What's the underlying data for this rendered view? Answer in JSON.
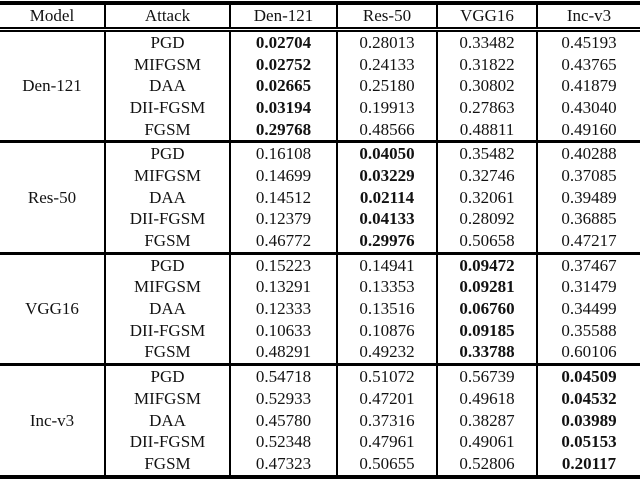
{
  "table": {
    "headers": [
      "Model",
      "Attack",
      "Den-121",
      "Res-50",
      "VGG16",
      "Inc-v3"
    ],
    "groups": [
      {
        "model": "Den-121",
        "bold_col": 0,
        "rows": [
          {
            "attack": "PGD",
            "values": [
              "0.02704",
              "0.28013",
              "0.33482",
              "0.45193"
            ]
          },
          {
            "attack": "MIFGSM",
            "values": [
              "0.02752",
              "0.24133",
              "0.31822",
              "0.43765"
            ]
          },
          {
            "attack": "DAA",
            "values": [
              "0.02665",
              "0.25180",
              "0.30802",
              "0.41879"
            ]
          },
          {
            "attack": "DII-FGSM",
            "values": [
              "0.03194",
              "0.19913",
              "0.27863",
              "0.43040"
            ]
          },
          {
            "attack": "FGSM",
            "values": [
              "0.29768",
              "0.48566",
              "0.48811",
              "0.49160"
            ]
          }
        ]
      },
      {
        "model": "Res-50",
        "bold_col": 1,
        "rows": [
          {
            "attack": "PGD",
            "values": [
              "0.16108",
              "0.04050",
              "0.35482",
              "0.40288"
            ]
          },
          {
            "attack": "MIFGSM",
            "values": [
              "0.14699",
              "0.03229",
              "0.32746",
              "0.37085"
            ]
          },
          {
            "attack": "DAA",
            "values": [
              "0.14512",
              "0.02114",
              "0.32061",
              "0.39489"
            ]
          },
          {
            "attack": "DII-FGSM",
            "values": [
              "0.12379",
              "0.04133",
              "0.28092",
              "0.36885"
            ]
          },
          {
            "attack": "FGSM",
            "values": [
              "0.46772",
              "0.29976",
              "0.50658",
              "0.47217"
            ]
          }
        ]
      },
      {
        "model": "VGG16",
        "bold_col": 2,
        "rows": [
          {
            "attack": "PGD",
            "values": [
              "0.15223",
              "0.14941",
              "0.09472",
              "0.37467"
            ]
          },
          {
            "attack": "MIFGSM",
            "values": [
              "0.13291",
              "0.13353",
              "0.09281",
              "0.31479"
            ]
          },
          {
            "attack": "DAA",
            "values": [
              "0.12333",
              "0.13516",
              "0.06760",
              "0.34499"
            ]
          },
          {
            "attack": "DII-FGSM",
            "values": [
              "0.10633",
              "0.10876",
              "0.09185",
              "0.35588"
            ]
          },
          {
            "attack": "FGSM",
            "values": [
              "0.48291",
              "0.49232",
              "0.33788",
              "0.60106"
            ]
          }
        ]
      },
      {
        "model": "Inc-v3",
        "bold_col": 3,
        "rows": [
          {
            "attack": "PGD",
            "values": [
              "0.54718",
              "0.51072",
              "0.56739",
              "0.04509"
            ]
          },
          {
            "attack": "MIFGSM",
            "values": [
              "0.52933",
              "0.47201",
              "0.49618",
              "0.04532"
            ]
          },
          {
            "attack": "DAA",
            "values": [
              "0.45780",
              "0.37316",
              "0.38287",
              "0.03989"
            ]
          },
          {
            "attack": "DII-FGSM",
            "values": [
              "0.52348",
              "0.47961",
              "0.49061",
              "0.05153"
            ]
          },
          {
            "attack": "FGSM",
            "values": [
              "0.47323",
              "0.50655",
              "0.52806",
              "0.20117"
            ]
          }
        ]
      }
    ]
  }
}
